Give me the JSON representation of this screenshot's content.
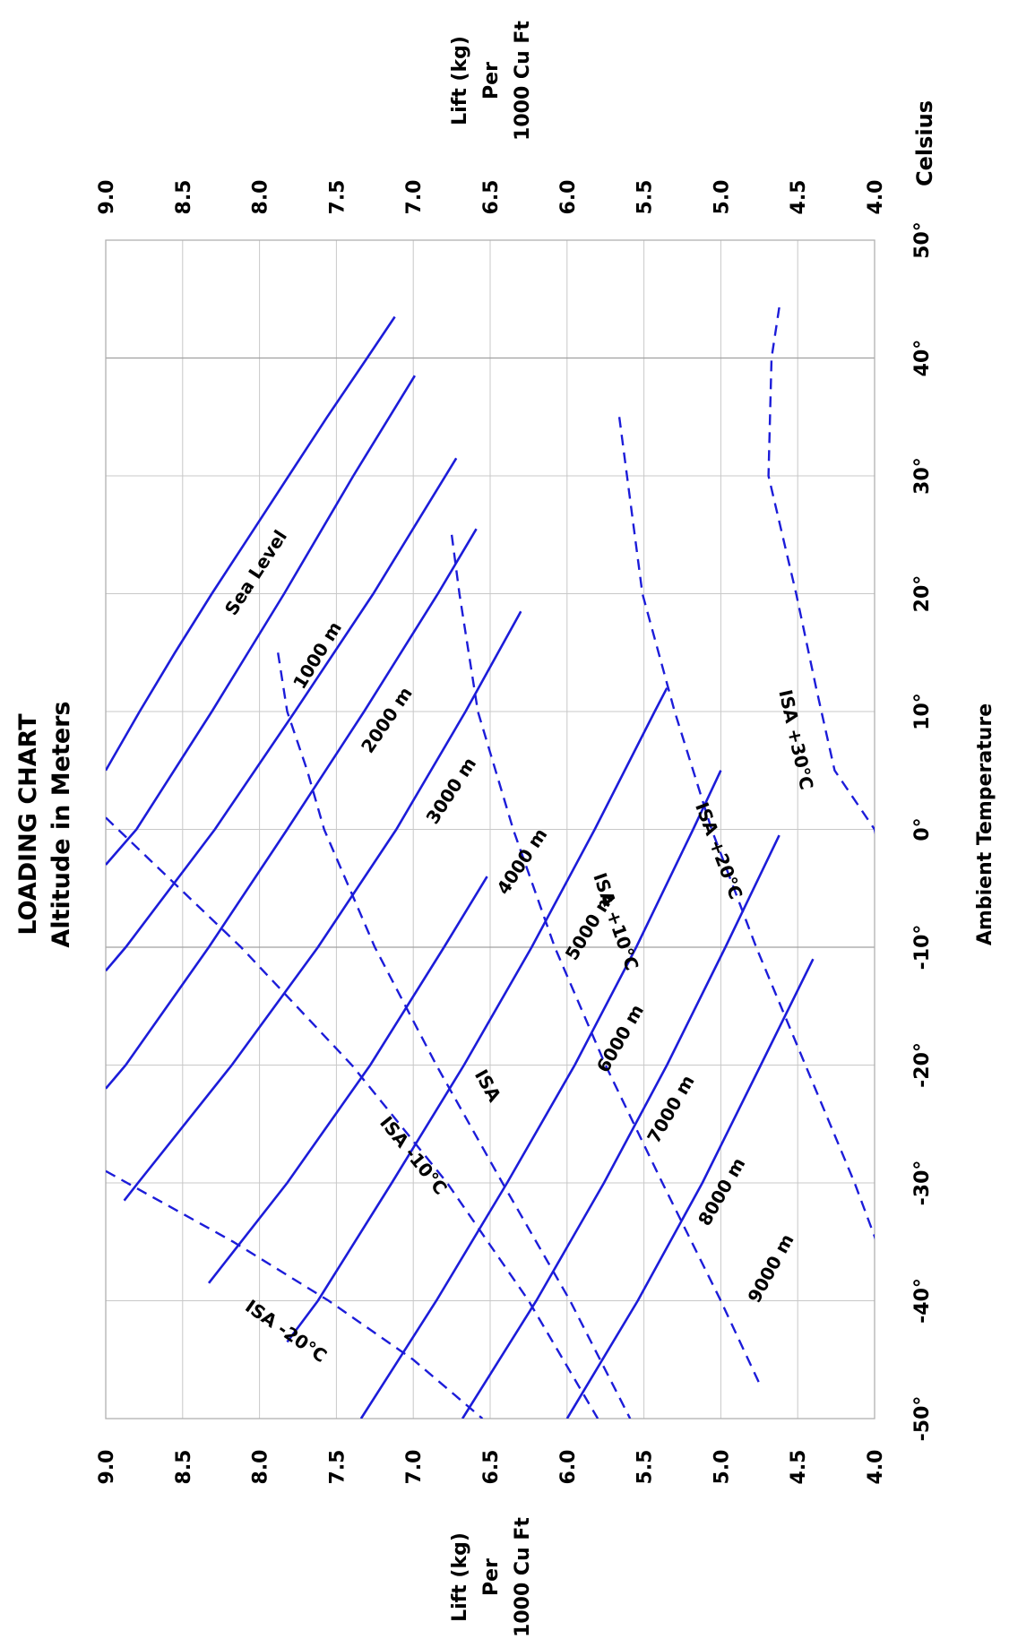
{
  "chart_data": {
    "type": "line",
    "title": "LOADING CHART",
    "subtitle": "Altitude in Meters",
    "xlabel": "Ambient Temperature",
    "xunit": "Celsius",
    "ylabel_lines": [
      "Lift (kg)",
      "Per",
      "1000 Cu Ft"
    ],
    "xlim": [
      -50,
      50
    ],
    "ylim": [
      4.0,
      9.0
    ],
    "x_ticks": [
      "-50°",
      "-40°",
      "-30°",
      "-20°",
      "-10°",
      "0°",
      "10°",
      "20°",
      "30°",
      "40°",
      "50°"
    ],
    "y_ticks": [
      "9.0",
      "8.5",
      "8.0",
      "7.5",
      "7.0",
      "6.5",
      "6.0",
      "5.5",
      "5.0",
      "4.5",
      "4.0"
    ],
    "grid": true,
    "orientation": "rotated 90° counter-clockwise",
    "altitude_lines": [
      {
        "label": "Sea Level",
        "style": "solid",
        "points": [
          [
            5,
            9.0
          ],
          [
            10,
            8.78
          ],
          [
            15,
            8.55
          ],
          [
            20,
            8.31
          ],
          [
            25,
            8.06
          ],
          [
            30,
            7.81
          ],
          [
            35,
            7.56
          ],
          [
            40,
            7.3
          ],
          [
            43.5,
            7.12
          ]
        ]
      },
      {
        "label": "1000 m",
        "style": "solid",
        "points": [
          [
            -3,
            9.0
          ],
          [
            0,
            8.8
          ],
          [
            10,
            8.31
          ],
          [
            20,
            7.84
          ],
          [
            30,
            7.39
          ],
          [
            38.5,
            6.99
          ]
        ]
      },
      {
        "label": "2000 m",
        "style": "solid",
        "points": [
          [
            -12,
            9.0
          ],
          [
            -10,
            8.87
          ],
          [
            0,
            8.29
          ],
          [
            10,
            7.77
          ],
          [
            20,
            7.26
          ],
          [
            31.5,
            6.72
          ]
        ]
      },
      {
        "label": "3000 m",
        "style": "solid",
        "points": [
          [
            -22,
            9.0
          ],
          [
            -20,
            8.87
          ],
          [
            -10,
            8.33
          ],
          [
            0,
            7.82
          ],
          [
            10,
            7.32
          ],
          [
            20,
            6.84
          ],
          [
            25.5,
            6.59
          ]
        ]
      },
      {
        "label": "4000 m",
        "style": "solid",
        "points": [
          [
            -31.5,
            8.88
          ],
          [
            -30,
            8.79
          ],
          [
            -20,
            8.18
          ],
          [
            -10,
            7.62
          ],
          [
            0,
            7.11
          ],
          [
            10,
            6.66
          ],
          [
            18.5,
            6.3
          ]
        ]
      },
      {
        "label": "5000 m",
        "style": "solid",
        "points": [
          [
            -38.5,
            8.33
          ],
          [
            -30,
            7.82
          ],
          [
            -20,
            7.28
          ],
          [
            -10,
            6.8
          ],
          [
            -4,
            6.52
          ]
        ]
      },
      {
        "label": "6000 m",
        "style": "solid",
        "points": [
          [
            -43.5,
            7.82
          ],
          [
            -40,
            7.62
          ],
          [
            -30,
            7.14
          ],
          [
            -20,
            6.67
          ],
          [
            -10,
            6.23
          ],
          [
            0,
            5.82
          ],
          [
            10,
            5.43
          ],
          [
            12,
            5.35
          ]
        ]
      },
      {
        "label": "7000 m",
        "style": "solid",
        "points": [
          [
            -50,
            7.34
          ],
          [
            -40,
            6.85
          ],
          [
            -30,
            6.39
          ],
          [
            -20,
            5.95
          ],
          [
            -10,
            5.55
          ],
          [
            0,
            5.18
          ],
          [
            5,
            5.0
          ]
        ]
      },
      {
        "label": "8000 m",
        "style": "solid",
        "points": [
          [
            -50,
            6.68
          ],
          [
            -40,
            6.2
          ],
          [
            -30,
            5.76
          ],
          [
            -20,
            5.35
          ],
          [
            -10,
            4.97
          ],
          [
            -0.5,
            4.62
          ]
        ]
      },
      {
        "label": "9000 m",
        "style": "solid",
        "points": [
          [
            -50,
            6.0
          ],
          [
            -40,
            5.54
          ],
          [
            -30,
            5.12
          ],
          [
            -20,
            4.74
          ],
          [
            -11,
            4.4
          ]
        ]
      }
    ],
    "isa_lines": [
      {
        "label": "ISA -20°C",
        "style": "dashed",
        "points": [
          [
            -29,
            9.0
          ],
          [
            -35,
            8.17
          ],
          [
            -40,
            7.55
          ],
          [
            -45,
            7.0
          ],
          [
            -50,
            6.55
          ]
        ]
      },
      {
        "label": "ISA -10°C",
        "style": "dashed",
        "points": [
          [
            1,
            9.0
          ],
          [
            -10,
            8.12
          ],
          [
            -20,
            7.4
          ],
          [
            -30,
            6.78
          ],
          [
            -40,
            6.25
          ],
          [
            -50,
            5.8
          ]
        ]
      },
      {
        "label": "ISA",
        "style": "dashed",
        "points": [
          [
            15,
            7.88
          ],
          [
            10,
            7.82
          ],
          [
            5,
            7.69
          ],
          [
            0,
            7.58
          ],
          [
            -10,
            7.25
          ],
          [
            -20,
            6.85
          ],
          [
            -30,
            6.42
          ],
          [
            -40,
            5.98
          ],
          [
            -50,
            5.59
          ]
        ]
      },
      {
        "label": "ISA +10°C",
        "style": "dashed",
        "points": [
          [
            25,
            6.75
          ],
          [
            20,
            6.7
          ],
          [
            10,
            6.58
          ],
          [
            0,
            6.35
          ],
          [
            -10,
            6.08
          ],
          [
            -20,
            5.75
          ],
          [
            -30,
            5.38
          ],
          [
            -40,
            5.0
          ],
          [
            -47,
            4.75
          ]
        ]
      },
      {
        "label": "ISA +20°C",
        "style": "dashed",
        "points": [
          [
            35,
            5.66
          ],
          [
            30,
            5.61
          ],
          [
            20,
            5.51
          ],
          [
            10,
            5.3
          ],
          [
            0,
            5.06
          ],
          [
            -10,
            4.77
          ],
          [
            -20,
            4.45
          ],
          [
            -30,
            4.13
          ],
          [
            -37,
            3.93
          ]
        ]
      },
      {
        "label": "ISA +30°C",
        "style": "dashed",
        "points": [
          [
            44.3,
            4.62
          ],
          [
            40,
            4.67
          ],
          [
            30,
            4.69
          ],
          [
            20,
            4.51
          ],
          [
            12,
            4.38
          ],
          [
            5,
            4.26
          ],
          [
            0,
            4.0
          ],
          [
            -10,
            3.83
          ],
          [
            -25,
            3.84
          ]
        ]
      }
    ]
  }
}
